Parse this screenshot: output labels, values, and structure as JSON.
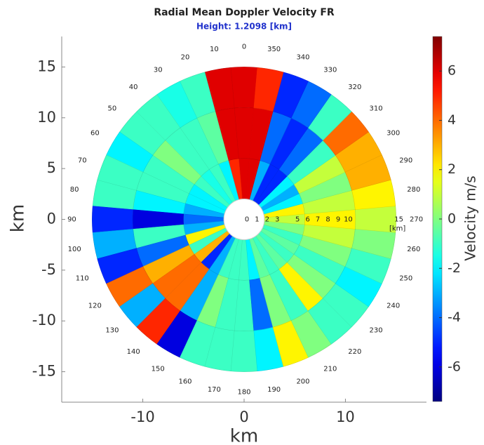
{
  "chart_data": {
    "type": "polar_heatmap",
    "title": "Radial Mean Doppler Velocity FR",
    "subtitle": "Height: 1.2098 [km]",
    "xlabel": "km",
    "ylabel": "km",
    "xlim": [
      -18,
      18
    ],
    "ylim": [
      -18,
      18
    ],
    "xticks": [
      -10,
      0,
      10
    ],
    "yticks": [
      -15,
      -10,
      -5,
      0,
      5,
      10,
      15
    ],
    "azimuths": [
      0,
      10,
      20,
      30,
      40,
      50,
      60,
      70,
      80,
      90,
      100,
      110,
      120,
      130,
      140,
      150,
      160,
      170,
      180,
      190,
      200,
      210,
      220,
      230,
      240,
      250,
      260,
      270,
      280,
      290,
      300,
      310,
      320,
      330,
      340,
      350
    ],
    "range_edges": [
      2,
      6,
      11,
      15
    ],
    "range_labels": [
      0,
      1,
      2,
      3,
      5,
      6,
      7,
      8,
      9,
      10,
      15
    ],
    "range_unit": "[km]",
    "values": [
      [
        6,
        6,
        6
      ],
      [
        5,
        6,
        6
      ],
      [
        -2,
        -0.5,
        -1
      ],
      [
        -1,
        -1,
        -1.5
      ],
      [
        -1.5,
        -1,
        -1
      ],
      [
        -1,
        0,
        -1
      ],
      [
        -2,
        -1,
        -2
      ],
      [
        -2,
        -1,
        -1
      ],
      [
        -3,
        -2,
        -1
      ],
      [
        -4,
        -6,
        -5
      ],
      [
        -3,
        -1,
        -3
      ],
      [
        2,
        -4,
        -5
      ],
      [
        -1,
        3,
        4
      ],
      [
        3,
        4,
        -3
      ],
      [
        -5,
        4,
        5
      ],
      [
        -3,
        -3,
        -6
      ],
      [
        -1,
        0,
        -1
      ],
      [
        -1,
        -1,
        -1
      ],
      [
        -1,
        -1,
        -1
      ],
      [
        -2,
        -4,
        -2
      ],
      [
        -0.5,
        0,
        2
      ],
      [
        -1,
        -1,
        0
      ],
      [
        -0.5,
        2,
        -1
      ],
      [
        -1,
        0,
        -1
      ],
      [
        -0.5,
        -1,
        -2
      ],
      [
        -1,
        0,
        -1
      ],
      [
        0,
        1,
        0
      ],
      [
        1,
        2,
        1
      ],
      [
        2,
        1,
        2
      ],
      [
        -2,
        0,
        3
      ],
      [
        -3,
        1,
        3
      ],
      [
        -2,
        -1,
        4
      ],
      [
        -5,
        -4,
        -1
      ],
      [
        -5,
        -5,
        -4
      ],
      [
        -3,
        -4,
        -5
      ],
      [
        6,
        6,
        5
      ]
    ],
    "colormap": "jet",
    "colorbar": {
      "label": "Velocity m/s",
      "clim": [
        -7.4,
        7.4
      ],
      "ticks": [
        -6,
        -4,
        -2,
        0,
        2,
        4,
        6
      ]
    }
  }
}
